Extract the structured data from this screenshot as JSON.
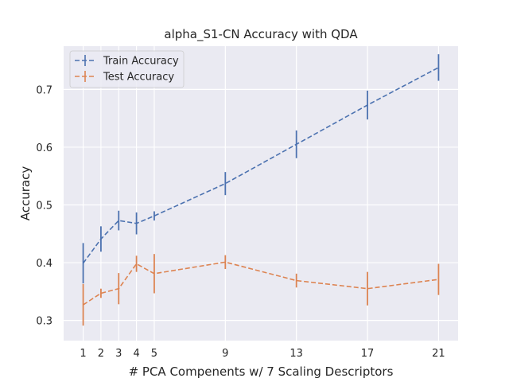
{
  "chart_data": {
    "type": "line",
    "title": "alpha_S1-CN Accuracy with QDA",
    "xlabel": "# PCA Compenents w/ 7 Scaling Descriptors",
    "ylabel": "Accuracy",
    "x": [
      1,
      2,
      3,
      4,
      5,
      9,
      13,
      17,
      21
    ],
    "x_ticks": [
      1,
      2,
      3,
      4,
      5,
      9,
      13,
      17,
      21
    ],
    "y_ticks": [
      0.3,
      0.4,
      0.5,
      0.6,
      0.7
    ],
    "xlim": [
      -0.1,
      22.1
    ],
    "ylim": [
      0.265,
      0.775
    ],
    "grid": true,
    "background": "#eaeaf2",
    "legend_position": "top-left",
    "series": [
      {
        "name": "Train Accuracy",
        "color": "#4c72b0",
        "line_style": "dashed",
        "values": [
          0.399,
          0.441,
          0.473,
          0.468,
          0.481,
          0.537,
          0.605,
          0.673,
          0.738
        ],
        "errors": [
          0.035,
          0.022,
          0.017,
          0.019,
          0.008,
          0.02,
          0.024,
          0.025,
          0.023
        ]
      },
      {
        "name": "Test Accuracy",
        "color": "#dd8452",
        "line_style": "dashed",
        "values": [
          0.327,
          0.347,
          0.355,
          0.398,
          0.381,
          0.401,
          0.369,
          0.355,
          0.371
        ],
        "errors": [
          0.036,
          0.008,
          0.027,
          0.014,
          0.034,
          0.012,
          0.012,
          0.029,
          0.027
        ]
      }
    ]
  }
}
